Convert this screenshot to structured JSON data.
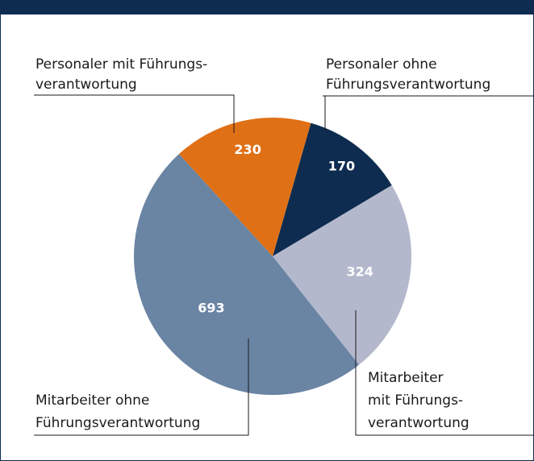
{
  "chart_data": {
    "type": "pie",
    "categories": [
      [
        "Personaler ohne",
        "Führungsverantwortung"
      ],
      [
        "Mitarbeiter",
        "mit Führungs-",
        "verantwortung"
      ],
      [
        "Mitarbeiter ohne",
        "Führungsverantwortung"
      ],
      [
        "Personaler mit Führungs-",
        "verantwortung"
      ]
    ],
    "values": [
      170,
      324,
      693,
      230
    ],
    "colors": [
      "#0e2c4f",
      "#b3b8cc",
      "#6a84a3",
      "#e07016"
    ],
    "start_angle": 16
  }
}
